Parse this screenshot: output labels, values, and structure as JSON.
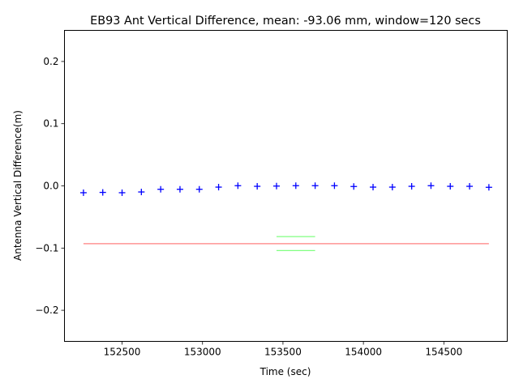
{
  "chart_data": {
    "type": "scatter",
    "title": "EB93 Ant Vertical Difference, mean: -93.06 mm, window=120 secs",
    "xlabel": "Time (sec)",
    "ylabel": "Antenna Vertical Difference(m)",
    "xlim": [
      152142,
      154894
    ],
    "ylim": [
      -0.25,
      0.25
    ],
    "xticks": [
      152500,
      153000,
      153500,
      154000,
      154500
    ],
    "xtick_labels": [
      "152500",
      "153000",
      "153500",
      "154000",
      "154500"
    ],
    "yticks": [
      -0.2,
      -0.1,
      0.0,
      0.1,
      0.2
    ],
    "ytick_labels": [
      "−0.2",
      "−0.1",
      "0.0",
      "0.1",
      "0.2"
    ],
    "grid": false,
    "series": [
      {
        "name": "vertical difference",
        "marker": "+",
        "color": "#0000ff",
        "x": [
          152260,
          152380,
          152500,
          152620,
          152740,
          152860,
          152980,
          153100,
          153220,
          153340,
          153460,
          153580,
          153700,
          153820,
          153940,
          154060,
          154180,
          154300,
          154420,
          154540,
          154660,
          154780
        ],
        "y": [
          -0.011,
          -0.0105,
          -0.011,
          -0.0098,
          -0.0055,
          -0.0055,
          -0.0055,
          -0.002,
          0.0003,
          -0.0007,
          -0.0003,
          0.0003,
          0.0003,
          0.0003,
          -0.001,
          -0.002,
          -0.002,
          -0.0007,
          0.0003,
          -0.0007,
          -0.0007,
          -0.0023
        ]
      },
      {
        "name": "mean",
        "type": "hline",
        "color": "#ff0000",
        "y": -0.09306,
        "x": [
          152260,
          154780
        ]
      },
      {
        "name": "band upper",
        "type": "hline",
        "color": "#00ff00",
        "y": -0.0815,
        "x": [
          153460,
          153700
        ]
      },
      {
        "name": "band lower",
        "type": "hline",
        "color": "#00ff00",
        "y": -0.1037,
        "x": [
          153460,
          153700
        ]
      }
    ]
  }
}
